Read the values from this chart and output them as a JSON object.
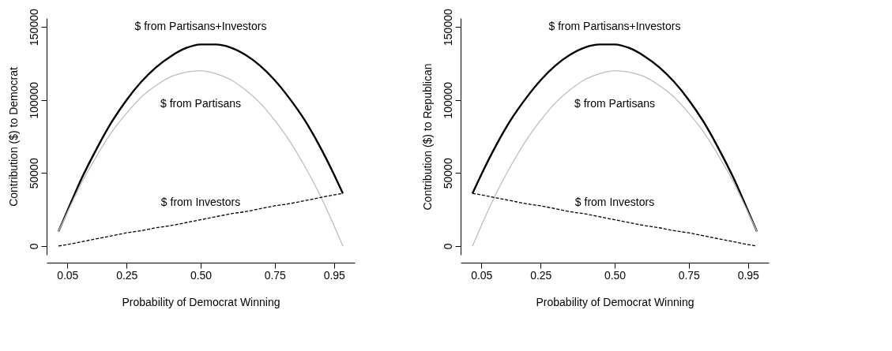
{
  "chart_data": [
    {
      "type": "line",
      "xlabel": "Probability of Democrat Winning",
      "ylabel": "Contribution ($) to Democrat",
      "x": [
        0.02,
        0.05,
        0.1,
        0.15,
        0.2,
        0.25,
        0.3,
        0.35,
        0.4,
        0.45,
        0.5,
        0.55,
        0.6,
        0.65,
        0.7,
        0.75,
        0.8,
        0.85,
        0.9,
        0.95,
        0.98
      ],
      "series": [
        {
          "name": "$ from Partisans+Investors",
          "color": "#000000",
          "line_style": "solid",
          "values": [
            10000,
            24000,
            47000,
            67000,
            85000,
            100000,
            112500,
            122500,
            130000,
            135500,
            138000,
            138000,
            136000,
            131000,
            123500,
            113500,
            101000,
            86500,
            69000,
            49000,
            36000
          ]
        },
        {
          "name": "$ from Partisans",
          "color": "#bebebe",
          "line_style": "solid",
          "values": [
            10000,
            23000,
            44000,
            62000,
            78000,
            91000,
            102000,
            110000,
            116000,
            119000,
            120000,
            118000,
            114000,
            107000,
            98000,
            86000,
            72000,
            55000,
            36000,
            14000,
            0
          ]
        },
        {
          "name": "$ from Investors",
          "color": "#000000",
          "line_style": "dashed",
          "values": [
            0,
            1000,
            3000,
            5000,
            7000,
            9000,
            10500,
            12500,
            14000,
            16000,
            18000,
            20000,
            22000,
            23500,
            25500,
            27500,
            29000,
            31000,
            33000,
            35000,
            36000
          ]
        }
      ],
      "xlim": [
        -0.02,
        1.02
      ],
      "xticks": [
        0.05,
        0.25,
        {
          "value": 0.5,
          "label": "0.50"
        },
        0.75,
        0.95
      ],
      "ylim": [
        -6000,
        156000
      ],
      "yticks": [
        0,
        50000,
        100000,
        150000
      ],
      "grid": false,
      "legend": false
    },
    {
      "type": "line",
      "xlabel": "Probability of Democrat Winning",
      "ylabel": "Contribution ($) to Republican",
      "x": [
        0.02,
        0.05,
        0.1,
        0.15,
        0.2,
        0.25,
        0.3,
        0.35,
        0.4,
        0.45,
        0.5,
        0.55,
        0.6,
        0.65,
        0.7,
        0.75,
        0.8,
        0.85,
        0.9,
        0.95,
        0.98
      ],
      "series": [
        {
          "name": "$ from Partisans+Investors",
          "color": "#000000",
          "line_style": "solid",
          "values": [
            36000,
            49000,
            69000,
            86500,
            101000,
            113500,
            123500,
            131000,
            136000,
            138000,
            138000,
            135500,
            130000,
            122500,
            112500,
            100000,
            85000,
            67000,
            47000,
            24000,
            10000
          ]
        },
        {
          "name": "$ from Partisans",
          "color": "#bebebe",
          "line_style": "solid",
          "values": [
            0,
            14000,
            36000,
            55000,
            72000,
            86000,
            98000,
            107000,
            114000,
            118000,
            120000,
            119000,
            116000,
            110000,
            102000,
            91000,
            78000,
            62000,
            44000,
            23000,
            10000
          ]
        },
        {
          "name": "$ from Investors",
          "color": "#000000",
          "line_style": "dashed",
          "values": [
            36000,
            35000,
            33000,
            31000,
            29000,
            27500,
            25500,
            23500,
            22000,
            20000,
            18000,
            16000,
            14000,
            12500,
            10500,
            9000,
            7000,
            5000,
            3000,
            1000,
            0
          ]
        }
      ],
      "xlim": [
        -0.02,
        1.02
      ],
      "xticks": [
        0.05,
        0.25,
        {
          "value": 0.5,
          "label": "0.50"
        },
        0.75,
        0.95
      ],
      "ylim": [
        -6000,
        156000
      ],
      "yticks": [
        0,
        50000,
        100000,
        150000
      ],
      "grid": false,
      "legend": false
    }
  ]
}
